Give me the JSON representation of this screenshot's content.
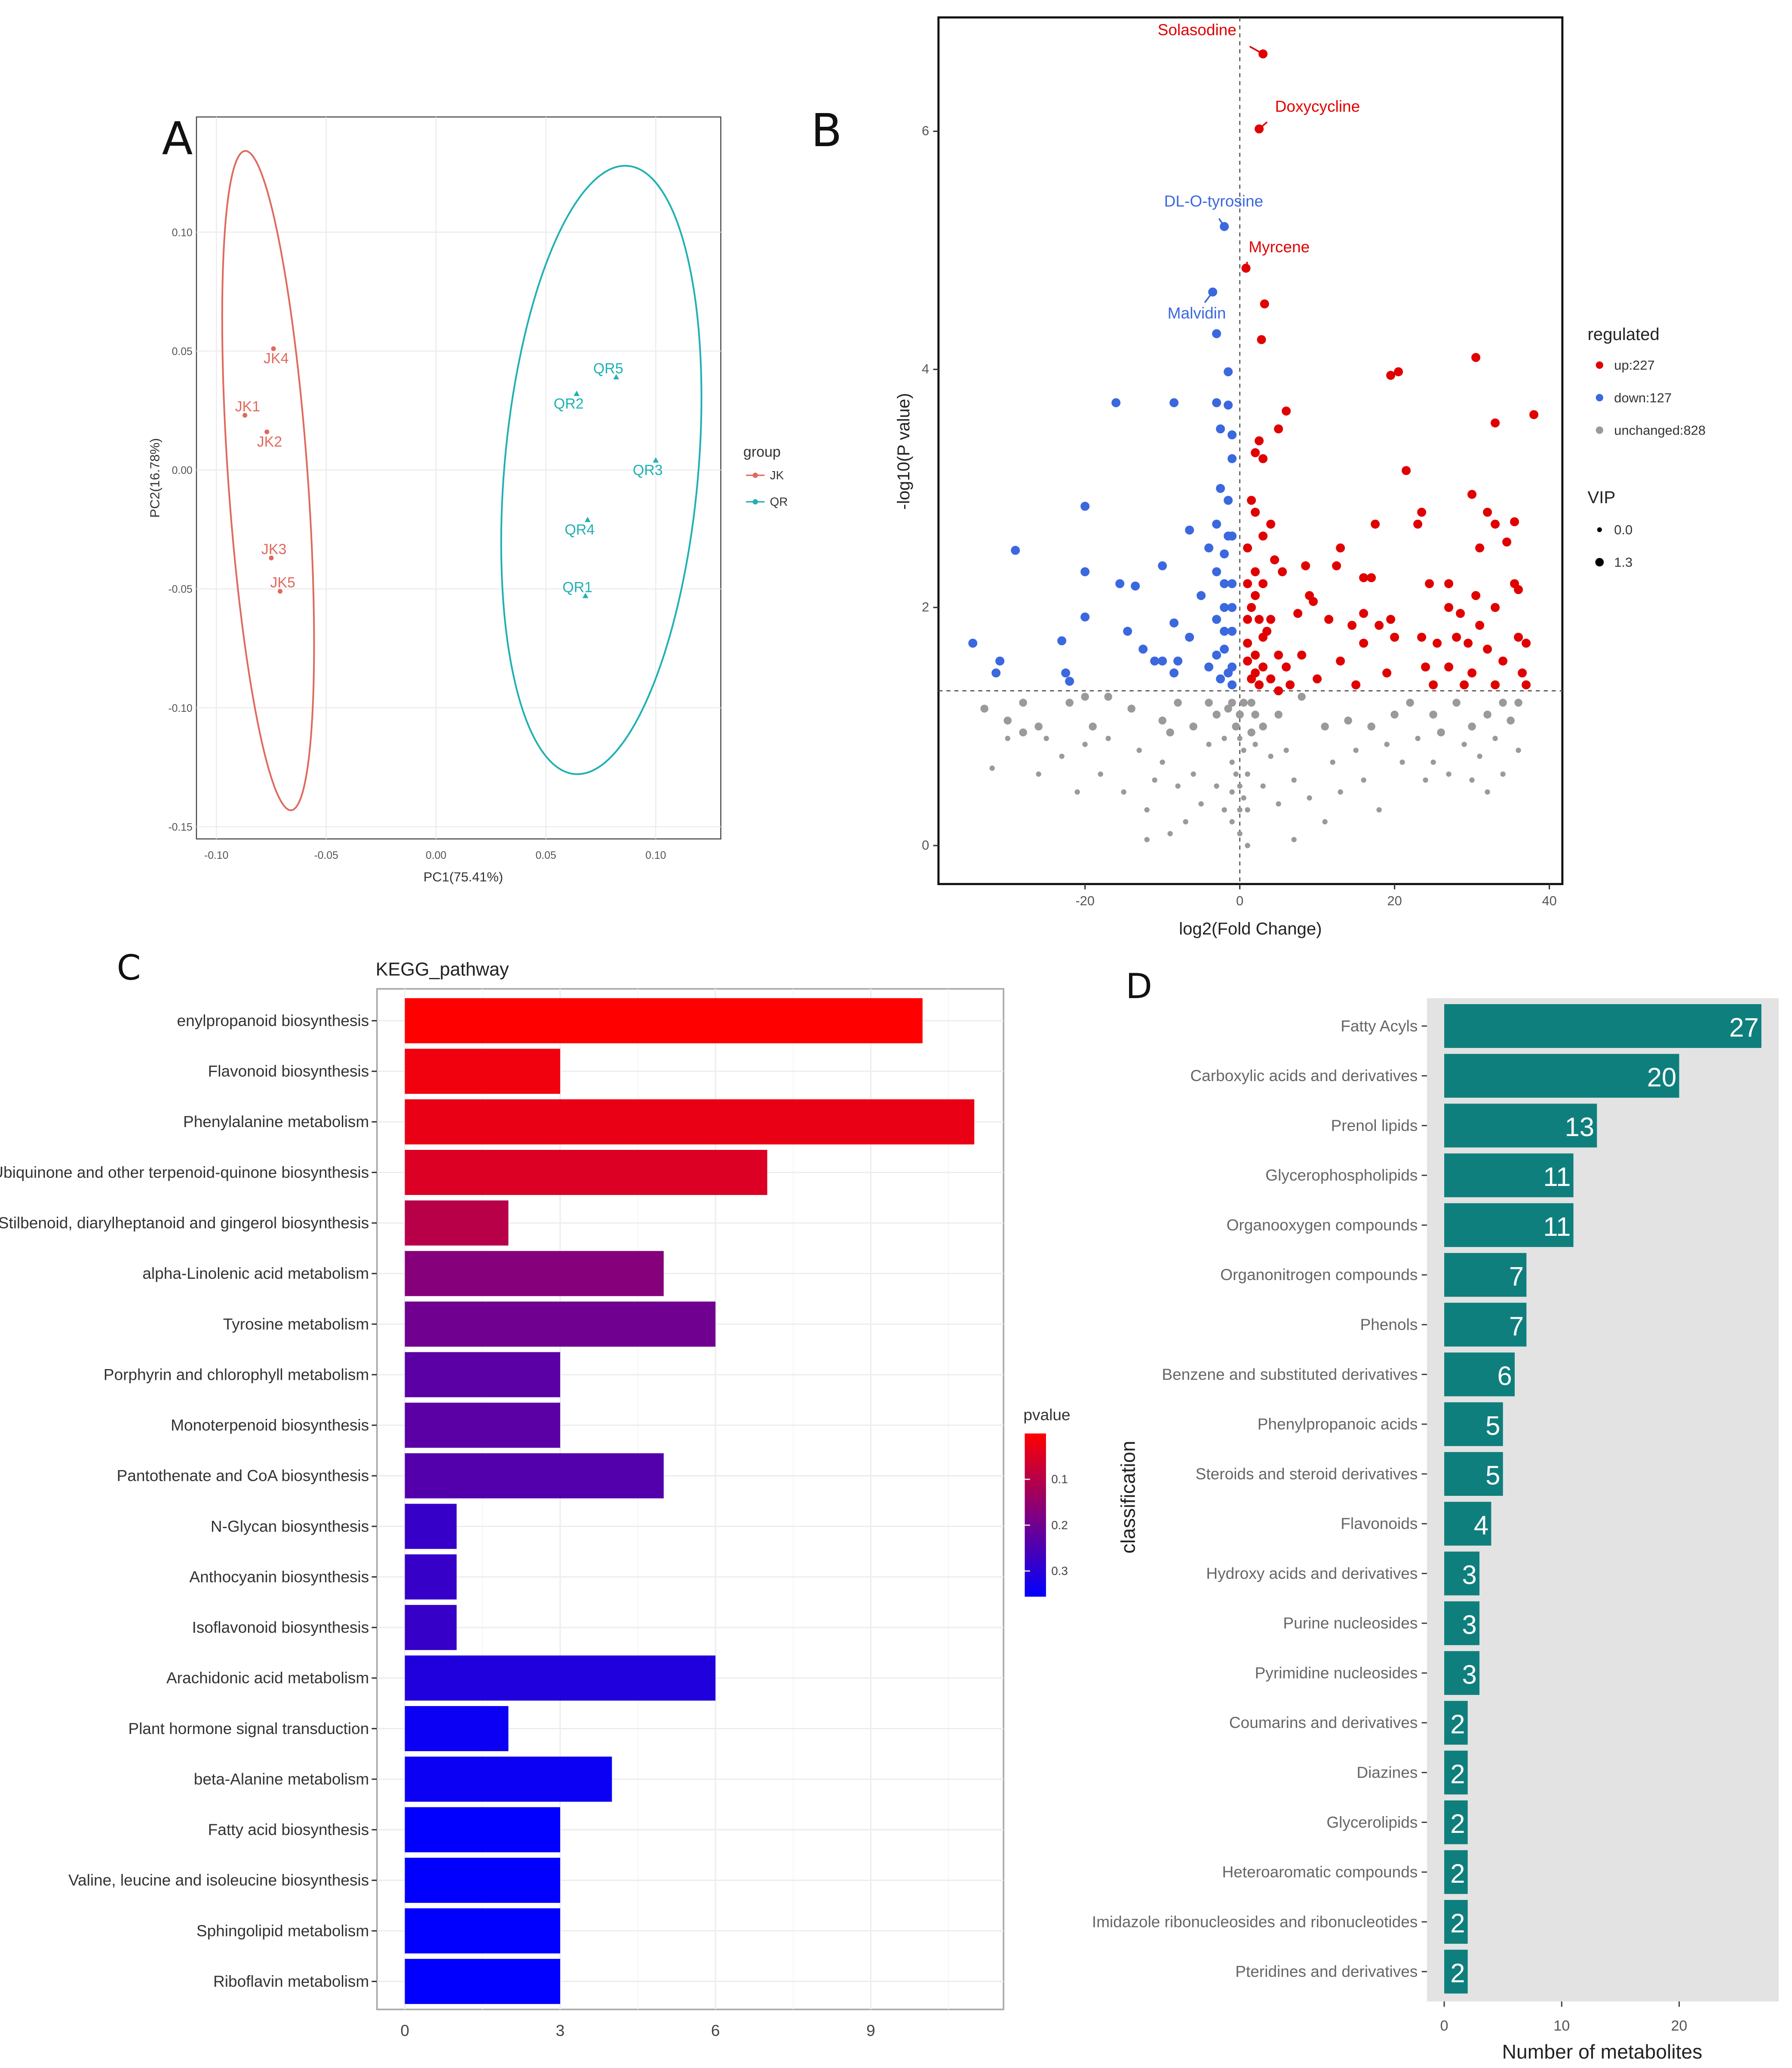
{
  "chart_data": [
    {
      "panel": "A",
      "type": "scatter",
      "xlabel": "PC1(75.41%)",
      "ylabel": "PC2(16.78%)",
      "xticks": [
        "-0.10",
        "-0.05",
        "0.00",
        "0.05",
        "0.10"
      ],
      "xtick_values": [
        -0.1,
        -0.05,
        0.0,
        0.05,
        0.1
      ],
      "yticks": [
        "0.10",
        "0.05",
        "0.00",
        "-0.05",
        "-0.10",
        "-0.15"
      ],
      "ytick_values": [
        0.1,
        0.05,
        0.0,
        -0.05,
        -0.1,
        -0.15
      ],
      "legend": {
        "title": "group",
        "entries": [
          "JK",
          "QR"
        ],
        "placement": "right"
      },
      "colors": {
        "JK": "#de6a5e",
        "QR": "#1fb0b4"
      },
      "series": [
        {
          "name": "JK",
          "points": [
            {
              "label": "JK1",
              "x": -0.087,
              "y": 0.023
            },
            {
              "label": "JK2",
              "x": -0.077,
              "y": 0.016
            },
            {
              "label": "JK3",
              "x": -0.075,
              "y": -0.037
            },
            {
              "label": "JK4",
              "x": -0.074,
              "y": 0.051
            },
            {
              "label": "JK5",
              "x": -0.071,
              "y": -0.051
            }
          ]
        },
        {
          "name": "QR",
          "points": [
            {
              "label": "QR1",
              "x": 0.068,
              "y": -0.053
            },
            {
              "label": "QR2",
              "x": 0.064,
              "y": 0.032
            },
            {
              "label": "QR3",
              "x": 0.1,
              "y": 0.004
            },
            {
              "label": "QR4",
              "x": 0.069,
              "y": -0.021
            },
            {
              "label": "QR5",
              "x": 0.082,
              "y": 0.039
            }
          ]
        }
      ]
    },
    {
      "panel": "B",
      "type": "scatter",
      "xlabel": "log2(Fold Change)",
      "ylabel": "-log10(P value)",
      "xticks": [
        "-20",
        "0",
        "20",
        "40"
      ],
      "xtick_values": [
        -20,
        0,
        20,
        40
      ],
      "yticks": [
        "0",
        "2",
        "4",
        "6"
      ],
      "ytick_values": [
        0,
        2,
        4,
        6
      ],
      "threshold_y": 1.3,
      "threshold_x": 0,
      "legend": {
        "regulated_title": "regulated",
        "entries": [
          "up:227",
          "down:127",
          "unchanged:828"
        ],
        "vip_title": "VIP",
        "vip_entries": [
          "0.0",
          "1.3"
        ],
        "placement": "right"
      },
      "colors": {
        "up": "#e00000",
        "down": "#3b68df",
        "unchanged": "#9a9a9a"
      },
      "labeled": [
        {
          "label": "Solasodine",
          "x": 3,
          "y": 6.65,
          "group": "up"
        },
        {
          "label": "Doxycycline",
          "x": 2.5,
          "y": 6.02,
          "group": "up"
        },
        {
          "label": "DL-O-tyrosine",
          "x": -2,
          "y": 5.2,
          "group": "down"
        },
        {
          "label": "Myrcene",
          "x": 0.8,
          "y": 4.85,
          "group": "up"
        },
        {
          "label": "Malvidin",
          "x": -3.5,
          "y": 4.65,
          "group": "down"
        }
      ],
      "up": [
        [
          3.2,
          4.55
        ],
        [
          2.8,
          4.25
        ],
        [
          6,
          3.65
        ],
        [
          5,
          3.5
        ],
        [
          2.5,
          3.4
        ],
        [
          2,
          3.3
        ],
        [
          3,
          3.25
        ],
        [
          20.5,
          3.98
        ],
        [
          19.5,
          3.95
        ],
        [
          30.5,
          4.1
        ],
        [
          33,
          3.55
        ],
        [
          38,
          3.62
        ],
        [
          21.5,
          3.15
        ],
        [
          30,
          2.95
        ],
        [
          32,
          2.8
        ],
        [
          33,
          2.7
        ],
        [
          35.5,
          2.72
        ],
        [
          1.5,
          2.9
        ],
        [
          2,
          2.8
        ],
        [
          17.5,
          2.7
        ],
        [
          23.5,
          2.8
        ],
        [
          23,
          2.7
        ],
        [
          34.5,
          2.55
        ],
        [
          31,
          2.5
        ],
        [
          13,
          2.5
        ],
        [
          12.5,
          2.35
        ],
        [
          8.5,
          2.35
        ],
        [
          16,
          2.25
        ],
        [
          17,
          2.25
        ],
        [
          24.5,
          2.2
        ],
        [
          27,
          2.2
        ],
        [
          30.5,
          2.1
        ],
        [
          35.5,
          2.2
        ],
        [
          36,
          2.15
        ],
        [
          9,
          2.1
        ],
        [
          9.5,
          2.05
        ],
        [
          27,
          2.0
        ],
        [
          28.5,
          1.95
        ],
        [
          31,
          1.85
        ],
        [
          33,
          2.0
        ],
        [
          7.5,
          1.95
        ],
        [
          11.5,
          1.9
        ],
        [
          14.5,
          1.85
        ],
        [
          16,
          1.95
        ],
        [
          18,
          1.85
        ],
        [
          19.5,
          1.9
        ],
        [
          23.5,
          1.75
        ],
        [
          25.5,
          1.7
        ],
        [
          28,
          1.75
        ],
        [
          29.5,
          1.7
        ],
        [
          32,
          1.65
        ],
        [
          36,
          1.75
        ],
        [
          37,
          1.7
        ],
        [
          8,
          1.6
        ],
        [
          13,
          1.55
        ],
        [
          16,
          1.7
        ],
        [
          20,
          1.75
        ],
        [
          24,
          1.5
        ],
        [
          27,
          1.5
        ],
        [
          30,
          1.45
        ],
        [
          34,
          1.55
        ],
        [
          36.5,
          1.45
        ],
        [
          10,
          1.4
        ],
        [
          15,
          1.35
        ],
        [
          19,
          1.45
        ],
        [
          25,
          1.35
        ],
        [
          29,
          1.35
        ],
        [
          33,
          1.35
        ],
        [
          37,
          1.35
        ],
        [
          1,
          2.5
        ],
        [
          2,
          2.3
        ],
        [
          3,
          2.2
        ],
        [
          1.5,
          2.0
        ],
        [
          2.5,
          1.9
        ],
        [
          3.5,
          1.8
        ],
        [
          1,
          1.7
        ],
        [
          2,
          1.6
        ],
        [
          3,
          1.5
        ],
        [
          4,
          1.4
        ],
        [
          1.5,
          1.4
        ],
        [
          2.5,
          1.35
        ],
        [
          5,
          1.6
        ],
        [
          6,
          1.5
        ],
        [
          5,
          1.3
        ],
        [
          4.5,
          2.4
        ],
        [
          5.5,
          2.3
        ],
        [
          4,
          1.9
        ],
        [
          6.5,
          1.35
        ],
        [
          1,
          2.2
        ],
        [
          2,
          2.1
        ],
        [
          1,
          1.9
        ],
        [
          3,
          1.75
        ],
        [
          2,
          1.45
        ],
        [
          1,
          1.55
        ],
        [
          4,
          2.7
        ],
        [
          3,
          2.6
        ]
      ],
      "down": [
        [
          -3,
          4.3
        ],
        [
          -1.5,
          3.98
        ],
        [
          -16,
          3.72
        ],
        [
          -8.5,
          3.72
        ],
        [
          -3,
          3.72
        ],
        [
          -1.5,
          3.7
        ],
        [
          -2.5,
          3.5
        ],
        [
          -1,
          3.45
        ],
        [
          -1,
          3.25
        ],
        [
          -2.5,
          3.0
        ],
        [
          -1.5,
          2.9
        ],
        [
          -20,
          2.85
        ],
        [
          -29,
          2.48
        ],
        [
          -6.5,
          2.65
        ],
        [
          -3,
          2.7
        ],
        [
          -1.5,
          2.6
        ],
        [
          -4,
          2.5
        ],
        [
          -2,
          2.45
        ],
        [
          -10,
          2.35
        ],
        [
          -20,
          2.3
        ],
        [
          -15.5,
          2.2
        ],
        [
          -13.5,
          2.18
        ],
        [
          -5,
          2.1
        ],
        [
          -3,
          2.3
        ],
        [
          -1,
          2.2
        ],
        [
          -2,
          2.0
        ],
        [
          -20,
          1.92
        ],
        [
          -8.5,
          1.87
        ],
        [
          -14.5,
          1.8
        ],
        [
          -6.5,
          1.75
        ],
        [
          -34.5,
          1.7
        ],
        [
          -23,
          1.72
        ],
        [
          -12.5,
          1.65
        ],
        [
          -31,
          1.55
        ],
        [
          -31.5,
          1.45
        ],
        [
          -22.5,
          1.45
        ],
        [
          -22,
          1.38
        ],
        [
          -11,
          1.55
        ],
        [
          -10,
          1.55
        ],
        [
          -8,
          1.55
        ],
        [
          -8.5,
          1.45
        ],
        [
          -4,
          1.5
        ],
        [
          -1,
          1.8
        ],
        [
          -2,
          1.65
        ],
        [
          -3,
          1.6
        ],
        [
          -1.5,
          1.45
        ],
        [
          -2.5,
          1.4
        ],
        [
          -1,
          1.35
        ],
        [
          -1,
          2.0
        ],
        [
          -2,
          2.2
        ],
        [
          -1,
          2.6
        ],
        [
          -3,
          1.9
        ],
        [
          -2,
          1.8
        ],
        [
          -1,
          1.5
        ]
      ],
      "unchanged": [
        [
          -33,
          1.15
        ],
        [
          -32,
          0.65
        ],
        [
          -30,
          0.9
        ],
        [
          -30,
          1.05
        ],
        [
          -28,
          1.2
        ],
        [
          -28,
          0.95
        ],
        [
          -26,
          1.0
        ],
        [
          -26,
          0.6
        ],
        [
          -25,
          0.9
        ],
        [
          -23,
          0.75
        ],
        [
          -22,
          1.2
        ],
        [
          -21,
          0.45
        ],
        [
          -20,
          1.25
        ],
        [
          -20,
          0.85
        ],
        [
          -19,
          1.0
        ],
        [
          -18,
          0.6
        ],
        [
          -17,
          1.25
        ],
        [
          -17,
          0.9
        ],
        [
          -15,
          0.45
        ],
        [
          -14,
          1.15
        ],
        [
          -13,
          0.8
        ],
        [
          -12,
          0.3
        ],
        [
          -12,
          0.05
        ],
        [
          -11,
          0.55
        ],
        [
          -10,
          1.05
        ],
        [
          -10,
          0.7
        ],
        [
          -9,
          0.95
        ],
        [
          -9,
          0.1
        ],
        [
          -8,
          1.2
        ],
        [
          -8,
          0.5
        ],
        [
          -7,
          0.2
        ],
        [
          -6,
          1.0
        ],
        [
          -6,
          0.6
        ],
        [
          -5,
          0.35
        ],
        [
          -4,
          1.2
        ],
        [
          -4,
          0.85
        ],
        [
          -3,
          1.1
        ],
        [
          -3,
          0.5
        ],
        [
          -2,
          0.9
        ],
        [
          -2,
          0.3
        ],
        [
          -1,
          1.2
        ],
        [
          -1,
          0.7
        ],
        [
          -1,
          0.2
        ],
        [
          0,
          0.1
        ],
        [
          0,
          0.5
        ],
        [
          0,
          0.9
        ],
        [
          0.5,
          1.2
        ],
        [
          1,
          0.6
        ],
        [
          1,
          0.3
        ],
        [
          1,
          0.0
        ],
        [
          2,
          0.85
        ],
        [
          2,
          1.1
        ],
        [
          3,
          1.0
        ],
        [
          3,
          0.5
        ],
        [
          4,
          0.75
        ],
        [
          5,
          1.1
        ],
        [
          5,
          0.35
        ],
        [
          6,
          0.8
        ],
        [
          7,
          0.05
        ],
        [
          7,
          0.55
        ],
        [
          8,
          1.25
        ],
        [
          9,
          0.4
        ],
        [
          11,
          1.0
        ],
        [
          11,
          0.2
        ],
        [
          12,
          0.7
        ],
        [
          13,
          0.45
        ],
        [
          14,
          1.05
        ],
        [
          15,
          0.8
        ],
        [
          16,
          0.55
        ],
        [
          17,
          1.0
        ],
        [
          18,
          0.3
        ],
        [
          19,
          0.85
        ],
        [
          20,
          1.1
        ],
        [
          21,
          0.7
        ],
        [
          22,
          1.2
        ],
        [
          23,
          0.9
        ],
        [
          24,
          0.55
        ],
        [
          25,
          1.1
        ],
        [
          25,
          0.7
        ],
        [
          26,
          0.95
        ],
        [
          27,
          0.6
        ],
        [
          28,
          1.2
        ],
        [
          29,
          0.85
        ],
        [
          30,
          1.0
        ],
        [
          30,
          0.55
        ],
        [
          31,
          0.75
        ],
        [
          32,
          1.1
        ],
        [
          32,
          0.45
        ],
        [
          33,
          0.9
        ],
        [
          34,
          1.2
        ],
        [
          34,
          0.6
        ],
        [
          35,
          1.05
        ],
        [
          36,
          0.8
        ],
        [
          36,
          1.2
        ],
        [
          -1,
          0.45
        ],
        [
          0.5,
          0.8
        ],
        [
          -0.5,
          1.0
        ],
        [
          1.5,
          0.95
        ],
        [
          0,
          0.3
        ],
        [
          -0.5,
          0.6
        ],
        [
          0.5,
          0.4
        ],
        [
          0,
          1.1
        ],
        [
          -1.5,
          1.15
        ],
        [
          1.5,
          1.2
        ]
      ]
    },
    {
      "panel": "C",
      "type": "bar",
      "orientation": "horizontal",
      "title": "KEGG_pathway",
      "xticks": [
        "0",
        "3",
        "6",
        "9"
      ],
      "xtick_values": [
        0,
        3,
        6,
        9
      ],
      "xlim": [
        0,
        11.5
      ],
      "legend": {
        "title": "pvalue",
        "ticks": [
          "0.1",
          "0.2",
          "0.3"
        ],
        "tick_values": [
          0.1,
          0.2,
          0.3
        ],
        "range": [
          0,
          0.356
        ],
        "low_color": "#ff0000",
        "high_color": "#0000ff",
        "placement": "right"
      },
      "categories": [
        "enylpropanoid biosynthesis",
        "Flavonoid biosynthesis",
        "Phenylalanine metabolism",
        "Ubiquinone and other terpenoid-quinone biosynthesis",
        "Stilbenoid, diarylheptanoid and gingerol biosynthesis",
        "alpha-Linolenic acid metabolism",
        "Tyrosine metabolism",
        "Porphyrin and chlorophyll metabolism",
        "Monoterpenoid biosynthesis",
        "Pantothenate and CoA biosynthesis",
        "N-Glycan biosynthesis",
        "Anthocyanin biosynthesis",
        "Isoflavonoid biosynthesis",
        "Arachidonic acid metabolism",
        "Plant hormone signal transduction",
        "beta-Alanine metabolism",
        "Fatty acid biosynthesis",
        "Valine, leucine and isoleucine biosynthesis",
        "Sphingolipid metabolism",
        "Riboflavin metabolism"
      ],
      "values": [
        10,
        3,
        11,
        7,
        2,
        5,
        6,
        3,
        3,
        5,
        1,
        1,
        1,
        6,
        2,
        4,
        3,
        3,
        3,
        3
      ],
      "pvalues": [
        0.0,
        0.02,
        0.03,
        0.05,
        0.1,
        0.17,
        0.2,
        0.23,
        0.23,
        0.24,
        0.28,
        0.28,
        0.28,
        0.31,
        0.34,
        0.34,
        0.355,
        0.355,
        0.355,
        0.355
      ]
    },
    {
      "panel": "D",
      "type": "bar",
      "orientation": "horizontal",
      "xlabel": "Number of metabolites",
      "ylabel": "classification",
      "xticks": [
        "0",
        "10",
        "20"
      ],
      "xtick_values": [
        0,
        10,
        20
      ],
      "color": "#0f7f7d",
      "categories": [
        "Fatty Acyls",
        "Carboxylic acids and derivatives",
        "Prenol lipids",
        "Glycerophospholipids",
        "Organooxygen compounds",
        "Organonitrogen compounds",
        "Phenols",
        "Benzene and substituted derivatives",
        "Phenylpropanoic acids",
        "Steroids and steroid derivatives",
        "Flavonoids",
        "Hydroxy acids and derivatives",
        "Purine nucleosides",
        "Pyrimidine nucleosides",
        "Coumarins and derivatives",
        "Diazines",
        "Glycerolipids",
        "Heteroaromatic compounds",
        "Imidazole ribonucleosides and ribonucleotides",
        "Pteridines and derivatives"
      ],
      "values": [
        27,
        20,
        13,
        11,
        11,
        7,
        7,
        6,
        5,
        5,
        4,
        3,
        3,
        3,
        2,
        2,
        2,
        2,
        2,
        2
      ]
    }
  ],
  "panel_labels": [
    "A",
    "B",
    "C",
    "D"
  ]
}
